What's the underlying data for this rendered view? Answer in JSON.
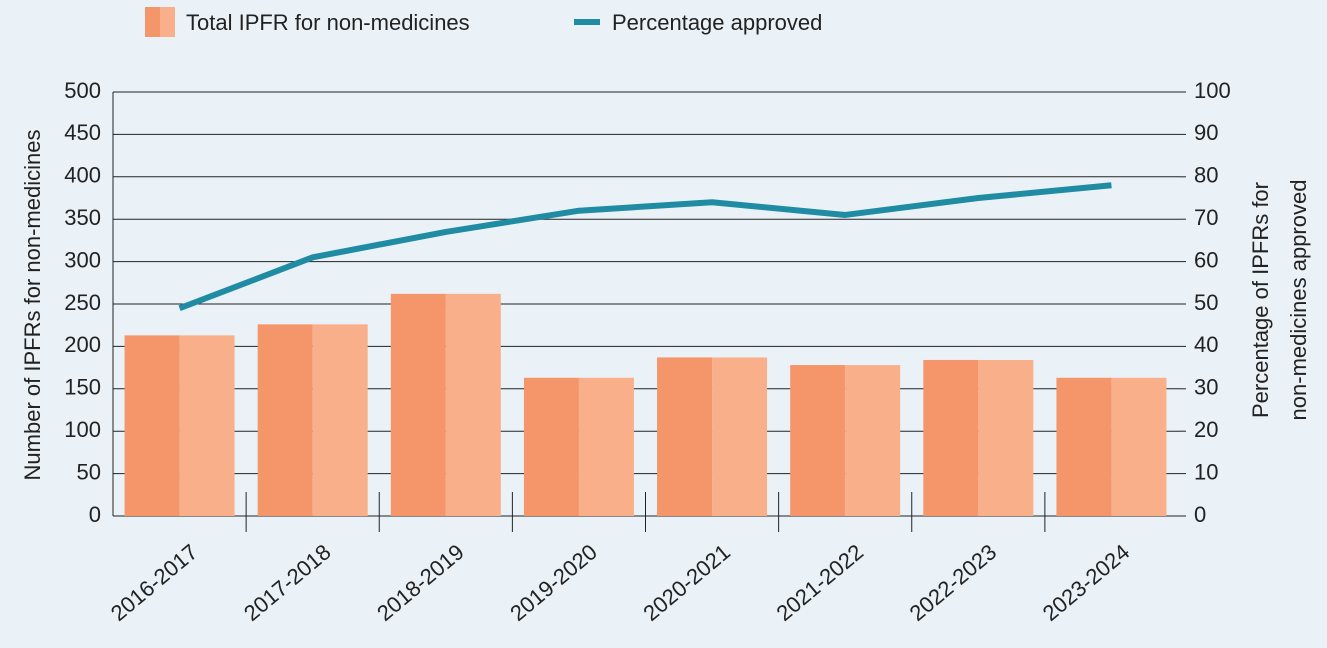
{
  "chart_data": {
    "type": "bar_line",
    "categories": [
      "2016-2017",
      "2017-2018",
      "2018-2019",
      "2019-2020",
      "2020-2021",
      "2021-2022",
      "2022-2023",
      "2023-2024"
    ],
    "series": [
      {
        "name": "Total IPFR for non-medicines",
        "type": "bar",
        "colors": [
          "#f4956a",
          "#f9b08a"
        ],
        "values": [
          213,
          226,
          262,
          163,
          187,
          178,
          184,
          163
        ]
      },
      {
        "name": "Percentage approved",
        "type": "line",
        "axis": "y2",
        "color": "#1f8ca3",
        "values": [
          49,
          61,
          67,
          72,
          74,
          71,
          75,
          78
        ]
      }
    ],
    "ylabel": "Number of IPFRs for non-medicines",
    "y2label": [
      "Percentage of IPFRs for",
      "non-medicines approved"
    ],
    "ylim": [
      0,
      500
    ],
    "yticks": [
      0,
      50,
      100,
      150,
      200,
      250,
      300,
      350,
      400,
      450,
      500
    ],
    "y2lim": [
      0,
      100
    ],
    "y2ticks": [
      0,
      10,
      20,
      30,
      40,
      50,
      60,
      70,
      80,
      90,
      100
    ],
    "grid": true
  }
}
